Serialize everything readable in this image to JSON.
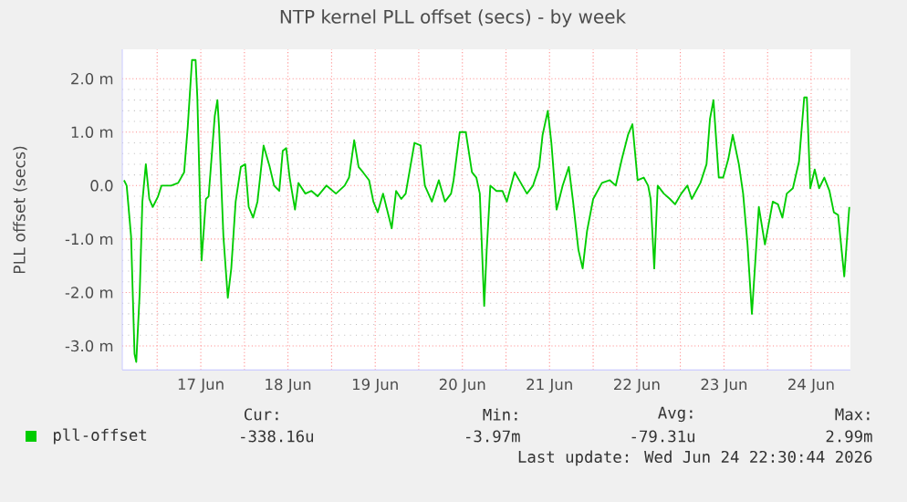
{
  "chart_data": {
    "type": "line",
    "title": "NTP kernel PLL offset (secs) - by week",
    "ylabel": "PLL offset (secs)",
    "xlim": [
      "2026-06-16T14:24",
      "2026-06-24T22:48"
    ],
    "ylim": [
      -3.45,
      2.55
    ],
    "xticks": [
      {
        "value": "2026-06-17",
        "label": null
      },
      {
        "value": "2026-06-17T12:00",
        "label": "17 Jun"
      },
      {
        "value": "2026-06-18",
        "label": null
      },
      {
        "value": "2026-06-18T12:00",
        "label": "18 Jun"
      },
      {
        "value": "2026-06-19",
        "label": null
      },
      {
        "value": "2026-06-19T12:00",
        "label": "19 Jun"
      },
      {
        "value": "2026-06-20",
        "label": null
      },
      {
        "value": "2026-06-20T12:00",
        "label": "20 Jun"
      },
      {
        "value": "2026-06-21",
        "label": null
      },
      {
        "value": "2026-06-21T12:00",
        "label": "21 Jun"
      },
      {
        "value": "2026-06-22",
        "label": null
      },
      {
        "value": "2026-06-22T12:00",
        "label": "22 Jun"
      },
      {
        "value": "2026-06-23",
        "label": null
      },
      {
        "value": "2026-06-23T12:00",
        "label": "23 Jun"
      },
      {
        "value": "2026-06-24",
        "label": null
      },
      {
        "value": "2026-06-24T12:00",
        "label": "24 Jun"
      }
    ],
    "yticks": [
      {
        "value": -3,
        "label": "-3.0 m"
      },
      {
        "value": -2,
        "label": "-2.0 m"
      },
      {
        "value": -1,
        "label": "-1.0 m"
      },
      {
        "value": 0,
        "label": "0.0"
      },
      {
        "value": 1,
        "label": "1.0 m"
      },
      {
        "value": 2,
        "label": "2.0 m"
      }
    ],
    "grid": true,
    "legend": "bottom",
    "marker": "none",
    "line_style": "solid",
    "annotations": [
      "Cur:",
      "Min:",
      "Avg:",
      "Max:",
      "-338.16u",
      "-3.97m",
      "-79.31u",
      "2.99m",
      "Last update: Wed Jun 24 22:30:44 2026"
    ],
    "series": [
      {
        "name": "pll-offset",
        "color": "#00cc00",
        "x": [
          "2026-06-16T14:53",
          "2026-06-16T15:36",
          "2026-06-16T16:48",
          "2026-06-16T17:46",
          "2026-06-16T18:14",
          "2026-06-16T19:12",
          "2026-06-16T19:55",
          "2026-06-16T20:53",
          "2026-06-16T21:50",
          "2026-06-16T22:48",
          "2026-06-17T00:14",
          "2026-06-17T01:12",
          "2026-06-17T03:50",
          "2026-06-17T05:46",
          "2026-06-17T07:26",
          "2026-06-17T08:24",
          "2026-06-17T09:36",
          "2026-06-17T10:34",
          "2026-06-17T11:02",
          "2026-06-17T12:14",
          "2026-06-17T13:26",
          "2026-06-17T14:10",
          "2026-06-17T15:07",
          "2026-06-17T15:50",
          "2026-06-17T16:34",
          "2026-06-17T17:02",
          "2026-06-17T18:14",
          "2026-06-17T19:26",
          "2026-06-17T20:24",
          "2026-06-17T21:36",
          "2026-06-17T23:02",
          "2026-06-18T00:14",
          "2026-06-18T01:12",
          "2026-06-18T02:24",
          "2026-06-18T03:36",
          "2026-06-18T05:17",
          "2026-06-18T06:58",
          "2026-06-18T08:10",
          "2026-06-18T09:36",
          "2026-06-18T10:34",
          "2026-06-18T11:31",
          "2026-06-18T12:29",
          "2026-06-18T13:55",
          "2026-06-18T14:53",
          "2026-06-18T16:48",
          "2026-06-18T18:29",
          "2026-06-18T20:10",
          "2026-06-18T22:34",
          "2026-06-19T01:12",
          "2026-06-19T03:36",
          "2026-06-19T04:48",
          "2026-06-19T06:14",
          "2026-06-19T07:26",
          "2026-06-19T08:38",
          "2026-06-19T10:19",
          "2026-06-19T11:31",
          "2026-06-19T12:43",
          "2026-06-19T14:10",
          "2026-06-19T16:34",
          "2026-06-19T17:46",
          "2026-06-19T19:12",
          "2026-06-19T20:24",
          "2026-06-19T22:48",
          "2026-06-20T00:29",
          "2026-06-20T01:41",
          "2026-06-20T03:36",
          "2026-06-20T05:31",
          "2026-06-20T07:12",
          "2026-06-20T08:53",
          "2026-06-20T09:36",
          "2026-06-20T11:17",
          "2026-06-20T12:58",
          "2026-06-20T14:38",
          "2026-06-20T15:50",
          "2026-06-20T16:48",
          "2026-06-20T18:00",
          "2026-06-20T18:43",
          "2026-06-20T19:41",
          "2026-06-20T21:22",
          "2026-06-20T23:02",
          "2026-06-21T00:14",
          "2026-06-21T02:24",
          "2026-06-21T04:05",
          "2026-06-21T05:46",
          "2026-06-21T07:26",
          "2026-06-21T09:07",
          "2026-06-21T10:05",
          "2026-06-21T11:31",
          "2026-06-21T12:29",
          "2026-06-21T13:55",
          "2026-06-21T15:36",
          "2026-06-21T17:17",
          "2026-06-21T18:29",
          "2026-06-21T19:55",
          "2026-06-21T21:07",
          "2026-06-21T22:19",
          "2026-06-22T00:00",
          "2026-06-22T02:24",
          "2026-06-22T04:34",
          "2026-06-22T06:14",
          "2026-06-22T07:55",
          "2026-06-22T09:36",
          "2026-06-22T10:48",
          "2026-06-22T12:14",
          "2026-06-22T13:55",
          "2026-06-22T15:07",
          "2026-06-22T15:50",
          "2026-06-22T16:48",
          "2026-06-22T17:46",
          "2026-06-22T19:26",
          "2026-06-22T21:07",
          "2026-06-22T22:34",
          "2026-06-23T00:14",
          "2026-06-23T01:55",
          "2026-06-23T03:07",
          "2026-06-23T05:31",
          "2026-06-23T07:12",
          "2026-06-23T08:10",
          "2026-06-23T09:07",
          "2026-06-23T10:34",
          "2026-06-23T11:46",
          "2026-06-23T13:12",
          "2026-06-23T14:24",
          "2026-06-23T16:05",
          "2026-06-23T17:17",
          "2026-06-23T18:29",
          "2026-06-23T19:41",
          "2026-06-23T21:36",
          "2026-06-23T23:17",
          "2026-06-24T00:14",
          "2026-06-24T01:26",
          "2026-06-24T02:53",
          "2026-06-24T04:05",
          "2026-06-24T05:17",
          "2026-06-24T06:58",
          "2026-06-24T08:38",
          "2026-06-24T10:05",
          "2026-06-24T10:48",
          "2026-06-24T11:46",
          "2026-06-24T12:58",
          "2026-06-24T14:10",
          "2026-06-24T15:36",
          "2026-06-24T17:02",
          "2026-06-24T18:14",
          "2026-06-24T19:26",
          "2026-06-24T21:07",
          "2026-06-24T22:30"
        ],
        "values": [
          0.1,
          0,
          -0.95,
          -3.15,
          -3.3,
          -2.0,
          -0.3,
          0.4,
          -0.25,
          -0.4,
          -0.2,
          0,
          0,
          0.05,
          0.25,
          1.1,
          2.35,
          2.35,
          1.65,
          -1.4,
          -0.25,
          -0.2,
          0.65,
          1.3,
          1.6,
          1.1,
          -0.95,
          -2.1,
          -1.55,
          -0.3,
          0.35,
          0.4,
          -0.4,
          -0.6,
          -0.3,
          0.75,
          0.35,
          0,
          -0.1,
          0.65,
          0.7,
          0.15,
          -0.45,
          0.05,
          -0.15,
          -0.1,
          -0.2,
          0,
          -0.15,
          0,
          0.15,
          0.85,
          0.35,
          0.25,
          0.1,
          -0.3,
          -0.5,
          -0.15,
          -0.8,
          -0.1,
          -0.25,
          -0.15,
          0.8,
          0.75,
          0,
          -0.3,
          0.1,
          -0.3,
          -0.15,
          0.1,
          1.0,
          1.0,
          0.25,
          0.15,
          -0.15,
          -2.25,
          -1.2,
          0,
          -0.1,
          -0.1,
          -0.3,
          0.25,
          0.05,
          -0.15,
          0,
          0.35,
          0.95,
          1.4,
          0.8,
          -0.45,
          0,
          0.35,
          -0.3,
          -1.2,
          -1.55,
          -0.85,
          -0.25,
          0.05,
          0.1,
          0,
          0.5,
          0.95,
          1.15,
          0.1,
          0.15,
          0,
          -0.25,
          -1.55,
          0,
          -0.15,
          -0.25,
          -0.35,
          -0.15,
          0,
          -0.25,
          0.05,
          0.4,
          1.25,
          1.6,
          0.15,
          0.15,
          0.5,
          0.95,
          0.4,
          -0.15,
          -1.1,
          -2.4,
          -0.4,
          -1.1,
          -0.75,
          -0.3,
          -0.35,
          -0.6,
          -0.15,
          -0.05,
          0.45,
          1.65,
          1.65,
          -0.05,
          0.3,
          -0.05,
          0.15,
          -0.1,
          -0.5,
          -0.55,
          -1.7,
          -0.4
        ]
      }
    ]
  }
}
